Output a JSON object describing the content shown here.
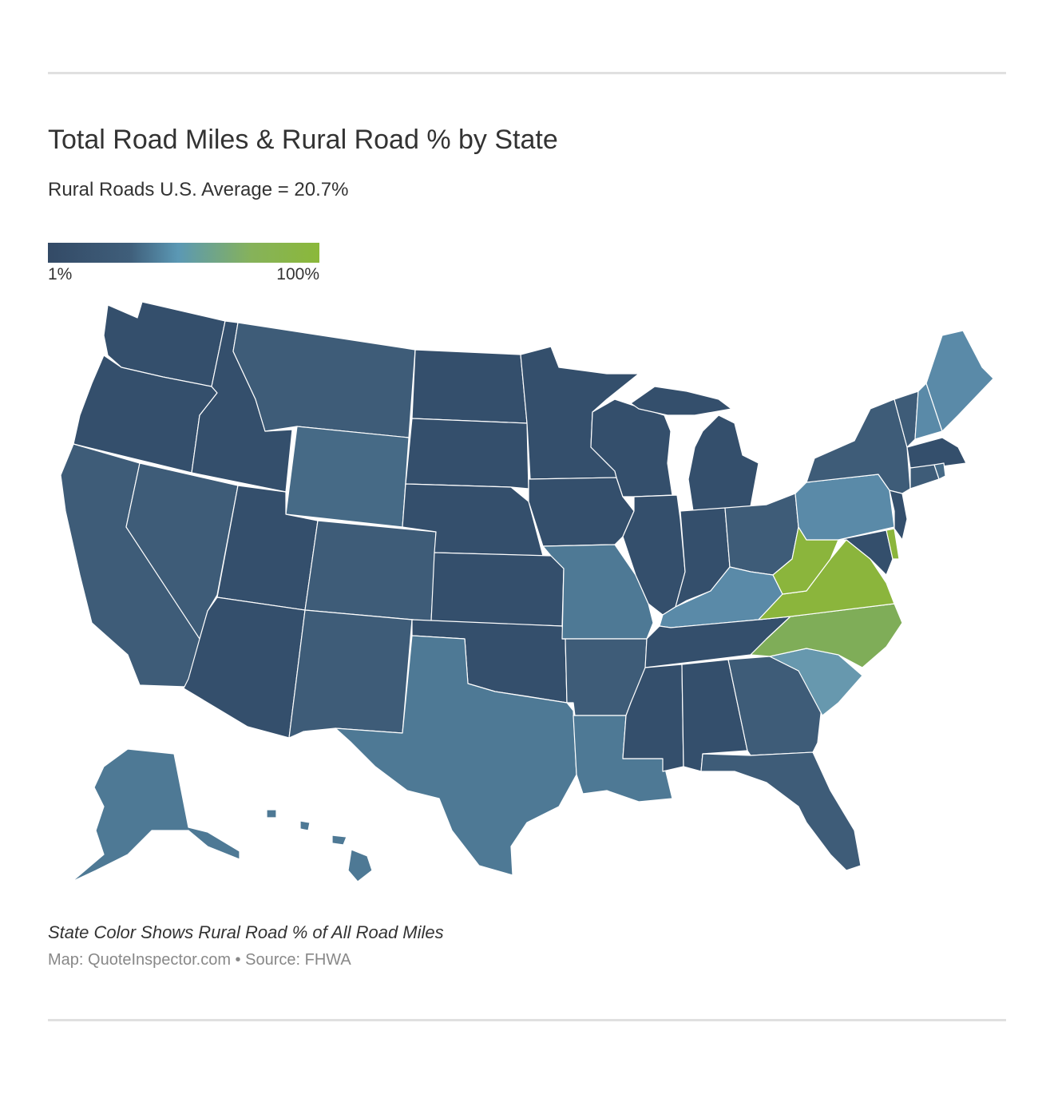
{
  "header": {
    "title": "Total Road Miles & Rural Road % by State",
    "subtitle": "Rural Roads U.S. Average = 20.7%"
  },
  "legend": {
    "min_label": "1%",
    "max_label": "100%",
    "colors": [
      "#334a66",
      "#3f5e7a",
      "#5b98b4",
      "#86b25a",
      "#8bb83a"
    ]
  },
  "footer": {
    "caption": "State Color Shows Rural Road % of All Road Miles",
    "source": "Map: QuoteInspector.com • Source: FHWA"
  },
  "colors": {
    "darkest": "#344f6c",
    "dark": "#3e5c78",
    "mid": "#466a86",
    "medium": "#4e7995",
    "light": "#5a8aa8",
    "lighter": "#6798ae",
    "green_mid": "#7fad58",
    "green": "#8bb53c"
  },
  "states": [
    {
      "id": "WA",
      "color": "#344f6c"
    },
    {
      "id": "OR",
      "color": "#344f6c"
    },
    {
      "id": "CA",
      "color": "#3e5c78"
    },
    {
      "id": "ID",
      "color": "#344f6c"
    },
    {
      "id": "NV",
      "color": "#3e5c78"
    },
    {
      "id": "MT",
      "color": "#3e5c78"
    },
    {
      "id": "WY",
      "color": "#466a86"
    },
    {
      "id": "UT",
      "color": "#344f6c"
    },
    {
      "id": "AZ",
      "color": "#344f6c"
    },
    {
      "id": "CO",
      "color": "#3e5c78"
    },
    {
      "id": "NM",
      "color": "#3e5c78"
    },
    {
      "id": "ND",
      "color": "#344f6c"
    },
    {
      "id": "SD",
      "color": "#344f6c"
    },
    {
      "id": "NE",
      "color": "#344f6c"
    },
    {
      "id": "KS",
      "color": "#344f6c"
    },
    {
      "id": "OK",
      "color": "#344f6c"
    },
    {
      "id": "TX",
      "color": "#4e7995"
    },
    {
      "id": "MN",
      "color": "#344f6c"
    },
    {
      "id": "IA",
      "color": "#344f6c"
    },
    {
      "id": "MO",
      "color": "#4e7995"
    },
    {
      "id": "AR",
      "color": "#3e5c78"
    },
    {
      "id": "LA",
      "color": "#4e7995"
    },
    {
      "id": "WI",
      "color": "#344f6c"
    },
    {
      "id": "IL",
      "color": "#344f6c"
    },
    {
      "id": "MI",
      "color": "#344f6c"
    },
    {
      "id": "IN",
      "color": "#344f6c"
    },
    {
      "id": "OH",
      "color": "#3e5c78"
    },
    {
      "id": "KY",
      "color": "#5a8aa8"
    },
    {
      "id": "TN",
      "color": "#344f6c"
    },
    {
      "id": "MS",
      "color": "#344f6c"
    },
    {
      "id": "AL",
      "color": "#344f6c"
    },
    {
      "id": "GA",
      "color": "#3e5c78"
    },
    {
      "id": "FL",
      "color": "#3e5c78"
    },
    {
      "id": "SC",
      "color": "#6798ae"
    },
    {
      "id": "NC",
      "color": "#7fad58"
    },
    {
      "id": "VA",
      "color": "#8bb53c"
    },
    {
      "id": "WV",
      "color": "#8bb53c"
    },
    {
      "id": "PA",
      "color": "#5a8aa8"
    },
    {
      "id": "NY",
      "color": "#3e5c78"
    },
    {
      "id": "VT",
      "color": "#3e5c78"
    },
    {
      "id": "NH",
      "color": "#5a8aa8"
    },
    {
      "id": "ME",
      "color": "#5a8aa8"
    },
    {
      "id": "MA",
      "color": "#344f6c"
    },
    {
      "id": "CT",
      "color": "#3e5c78"
    },
    {
      "id": "RI",
      "color": "#466a86"
    },
    {
      "id": "NJ",
      "color": "#344f6c"
    },
    {
      "id": "DE",
      "color": "#8bb53c"
    },
    {
      "id": "MD",
      "color": "#344f6c"
    },
    {
      "id": "AK",
      "color": "#4e7995"
    },
    {
      "id": "HI",
      "color": "#4e7995"
    }
  ]
}
